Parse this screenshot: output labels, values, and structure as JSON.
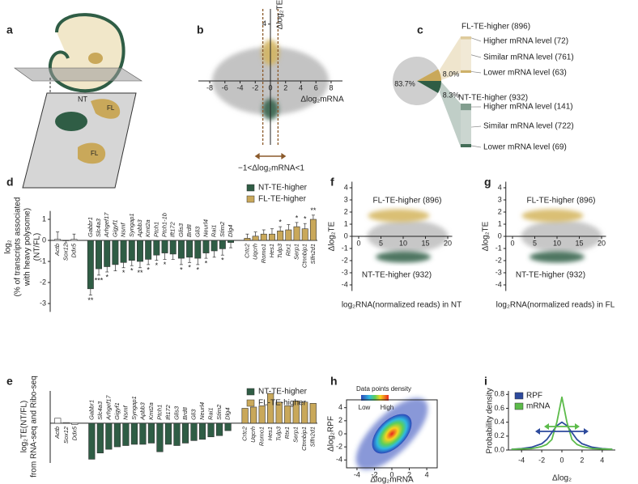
{
  "panel_labels": [
    "a",
    "b",
    "c",
    "d",
    "e",
    "f",
    "g",
    "h",
    "i"
  ],
  "schematic": {
    "labels": [
      "NT",
      "FL",
      "FL"
    ]
  },
  "chart_data": [
    {
      "type": "scatter",
      "xlabel": "Δlog₂mRNA",
      "ylabel": "Δlog₂TE",
      "xlim": [
        -9.5,
        9.5
      ],
      "ylim": [
        -4.5,
        4.5
      ],
      "xticks": [
        -8,
        -6,
        -4,
        -2,
        0,
        2,
        4,
        6,
        8
      ],
      "yticks": [
        4
      ],
      "bounds": [
        -1,
        1
      ],
      "annotations": [
        "−1<Δlog₂mRNA<1"
      ],
      "colors": {
        "points": "#b9b9b9",
        "high": "#d4b45c",
        "low": "#2f5d45",
        "bounds": "#8b5a2b"
      }
    },
    {
      "type": "pie",
      "values": [
        83.7,
        8.0,
        8.3
      ],
      "value_labels": [
        "83.7%",
        "8.0%",
        "8.3%"
      ],
      "colors": [
        "#cfcfcf",
        "#c9a85a",
        "#2f5d45"
      ],
      "groups": [
        {
          "title": "FL-TE-higher (896)",
          "color": "#c9a85a",
          "items": [
            {
              "label": "Higher mRNA level (72)",
              "value": 72
            },
            {
              "label": "Similar mRNA level (761)",
              "value": 761
            },
            {
              "label": "Lower mRNA level (63)",
              "value": 63
            }
          ]
        },
        {
          "title": "NT-TE-higher (932)",
          "color": "#2f5d45",
          "items": [
            {
              "label": "Higher mRNA level (141)",
              "value": 141
            },
            {
              "label": "Similar mRNA level (722)",
              "value": 722
            },
            {
              "label": "Lower mRNA level (69)",
              "value": 69
            }
          ]
        }
      ]
    },
    {
      "type": "bar",
      "ylabel": [
        "log₂",
        "(% of transcripts associated",
        "with heavy polysome)",
        "(NT/FL)"
      ],
      "categories": [
        "Actb",
        "Sox12",
        "Ddx5",
        "Gabbr1",
        "Slc4a3",
        "Arhgef17",
        "Gigyf1",
        "Nsmf",
        "Syngap1",
        "Apbb3",
        "Kmt2a",
        "Ptch1",
        "Ptch1-1b",
        "Ift172",
        "Glis3",
        "Brd8",
        "Gli3",
        "Neurl4",
        "Rai1",
        "Stim2",
        "Dlg4",
        "Crtc2",
        "Uqcrh",
        "Romo1",
        "Hes1",
        "Tulp3",
        "Rtx1",
        "Serp1",
        "Ctnnbip1",
        "Slfn2d1"
      ],
      "series": [
        {
          "color": "#ffffff",
          "values": [
            0.05,
            -0.02,
            0.05,
            null,
            null,
            null,
            null,
            null,
            null,
            null,
            null,
            null,
            null,
            null,
            null,
            null,
            null,
            null,
            null,
            null,
            null,
            null,
            null,
            null,
            null,
            null,
            null,
            null,
            null,
            null
          ],
          "errors": [
            0.35,
            0.1,
            0.25,
            null,
            null,
            null,
            null,
            null,
            null,
            null,
            null,
            null,
            null,
            null,
            null,
            null,
            null,
            null,
            null,
            null,
            null,
            null,
            null,
            null,
            null,
            null,
            null,
            null,
            null,
            null
          ]
        },
        {
          "name": "NT-TE-higher",
          "color": "#2f5d45",
          "values": [
            null,
            null,
            null,
            -2.3,
            -1.35,
            -1.25,
            -1.15,
            -1.05,
            -0.95,
            -1.0,
            -0.9,
            -0.7,
            -0.6,
            -0.65,
            -0.85,
            -0.8,
            -0.85,
            -0.6,
            -0.5,
            -0.4,
            -0.1,
            null,
            null,
            null,
            null,
            null,
            null,
            null,
            null,
            null
          ],
          "errors": [
            null,
            null,
            null,
            0.3,
            0.3,
            0.25,
            0.3,
            0.25,
            0.25,
            0.3,
            0.25,
            0.25,
            0.3,
            0.25,
            0.3,
            0.25,
            0.3,
            0.25,
            0.3,
            0.3,
            0.25,
            null,
            null,
            null,
            null,
            null,
            null,
            null,
            null,
            null
          ]
        },
        {
          "name": "FL-TE-higher",
          "color": "#c9a85a",
          "values": [
            null,
            null,
            null,
            null,
            null,
            null,
            null,
            null,
            null,
            null,
            null,
            null,
            null,
            null,
            null,
            null,
            null,
            null,
            null,
            null,
            null,
            0.1,
            0.2,
            0.3,
            0.3,
            0.45,
            0.5,
            0.65,
            0.55,
            1.0
          ],
          "errors": [
            null,
            null,
            null,
            null,
            null,
            null,
            null,
            null,
            null,
            null,
            null,
            null,
            null,
            null,
            null,
            null,
            null,
            null,
            null,
            null,
            null,
            0.2,
            0.2,
            0.2,
            0.25,
            0.2,
            0.25,
            0.2,
            0.25,
            0.2
          ]
        }
      ],
      "stars": [
        null,
        null,
        null,
        "**",
        "***",
        "*",
        null,
        "*",
        "*",
        "**",
        "*",
        "*",
        "*",
        null,
        "*",
        "*",
        "*",
        "*",
        null,
        "*",
        null,
        null,
        null,
        null,
        null,
        "*",
        null,
        "*",
        "*",
        "**"
      ],
      "ylim": [
        -3.4,
        1.4
      ],
      "yticks": [
        -3,
        -2,
        -1,
        0,
        1
      ]
    },
    {
      "type": "bar",
      "ylabel": [
        "log₂TE(NT/FL)",
        "from RNA-seq and Ribo-seq"
      ],
      "categories": [
        "Actb",
        "Sox12",
        "Ddx5",
        "Gabbr1",
        "Slc4a3",
        "Arhgef17",
        "Gigyf1",
        "Nsmf",
        "Syngap1",
        "Apbb3",
        "Kmt2a",
        "Ptch1",
        "Ift172",
        "Glis3",
        "Brd8",
        "Gli3",
        "Neurl4",
        "Rai1",
        "Stim2",
        "Dlg4",
        "Crtc2",
        "Uqcrh",
        "Romo1",
        "Hes1",
        "Tulp3",
        "Rtx1",
        "Serp1",
        "Ctnnbip1",
        "Slfn2d1"
      ],
      "series": [
        {
          "color": "#ffffff",
          "values": [
            0.4,
            0.05,
            -0.1,
            null,
            null,
            null,
            null,
            null,
            null,
            null,
            null,
            null,
            null,
            null,
            null,
            null,
            null,
            null,
            null,
            null,
            null,
            null,
            null,
            null,
            null,
            null,
            null,
            null,
            null
          ]
        },
        {
          "name": "NT-TE-higher",
          "color": "#2f5d45",
          "values": [
            null,
            null,
            null,
            -2.9,
            -2.4,
            -2.1,
            -1.9,
            -1.8,
            -1.7,
            -1.7,
            -1.6,
            -2.3,
            -1.7,
            -1.8,
            -1.6,
            -1.4,
            -1.3,
            -1.1,
            -1.0,
            -0.6,
            null,
            null,
            null,
            null,
            null,
            null,
            null,
            null,
            null
          ]
        },
        {
          "name": "FL-TE-higher",
          "color": "#c9a85a",
          "values": [
            null,
            null,
            null,
            null,
            null,
            null,
            null,
            null,
            null,
            null,
            null,
            null,
            null,
            null,
            null,
            null,
            null,
            null,
            null,
            null,
            1.2,
            1.3,
            1.4,
            2.4,
            1.7,
            1.4,
            1.8,
            1.7,
            1.6
          ]
        }
      ],
      "ylim": [
        -3.2,
        2.6
      ]
    },
    {
      "type": "scatter",
      "xlabel": "log₂RNA(normalized reads) in NT",
      "ylabel": "Δlog₂TE",
      "xlim": [
        -1.5,
        21
      ],
      "ylim": [
        -4.5,
        4.5
      ],
      "xticks": [
        0,
        5,
        10,
        15,
        20
      ],
      "yticks": [
        -4,
        -3,
        -2,
        -1,
        0,
        1,
        2,
        3,
        4
      ],
      "annotations": [
        "FL-TE-higher (896)",
        "NT-TE-higher (932)"
      ],
      "colors": {
        "points": "#bdbdbd",
        "high": "#d4b45c",
        "low": "#2f5d45"
      }
    },
    {
      "type": "scatter",
      "xlabel": "log₂RNA(normalized reads) in FL",
      "ylabel": "Δlog₂TE",
      "xlim": [
        -1.5,
        21
      ],
      "ylim": [
        -4.5,
        4.5
      ],
      "xticks": [
        0,
        5,
        10,
        15,
        20
      ],
      "yticks": [
        -4,
        -3,
        -2,
        -1,
        0,
        1,
        2,
        3,
        4
      ],
      "annotations": [
        "FL-TE-higher (896)",
        "NT-TE-higher (932)"
      ],
      "colors": {
        "points": "#bdbdbd",
        "high": "#d4b45c",
        "low": "#2f5d45"
      }
    },
    {
      "type": "scatter",
      "xlabel": "Δlog₂mRNA",
      "ylabel": "Δlog₂RPF",
      "xlim": [
        -5.2,
        5.2
      ],
      "ylim": [
        -5.2,
        5.2
      ],
      "xticks": [
        -4,
        -2,
        0,
        2,
        4
      ],
      "yticks": [
        -4,
        -2,
        0,
        2,
        4
      ],
      "legend_title": "Data points density",
      "legend_labels": [
        "Low",
        "High"
      ]
    },
    {
      "type": "line",
      "xlabel": "Δlog₂",
      "ylabel": "Probability density",
      "x": [
        -5,
        -4,
        -3,
        -2,
        -1.5,
        -1,
        -0.5,
        0,
        0.5,
        1,
        1.5,
        2,
        3,
        4,
        5
      ],
      "series": [
        {
          "name": "RPF",
          "color": "#2d4a9c",
          "values": [
            0.01,
            0.02,
            0.04,
            0.09,
            0.15,
            0.25,
            0.35,
            0.4,
            0.35,
            0.25,
            0.15,
            0.09,
            0.04,
            0.02,
            0.01
          ]
        },
        {
          "name": "mRNA",
          "color": "#5cbb4a",
          "values": [
            0.01,
            0.015,
            0.02,
            0.05,
            0.08,
            0.15,
            0.4,
            0.76,
            0.4,
            0.15,
            0.08,
            0.05,
            0.02,
            0.015,
            0.01
          ]
        }
      ],
      "xlim": [
        -5.3,
        5.3
      ],
      "ylim": [
        0,
        0.85
      ],
      "xticks": [
        -4,
        -2,
        0,
        2,
        4
      ],
      "yticks": [
        {
          "value": 0,
          "label": "0.0"
        },
        0.2,
        0.4,
        0.6,
        0.8
      ],
      "legend": "top-left"
    }
  ]
}
